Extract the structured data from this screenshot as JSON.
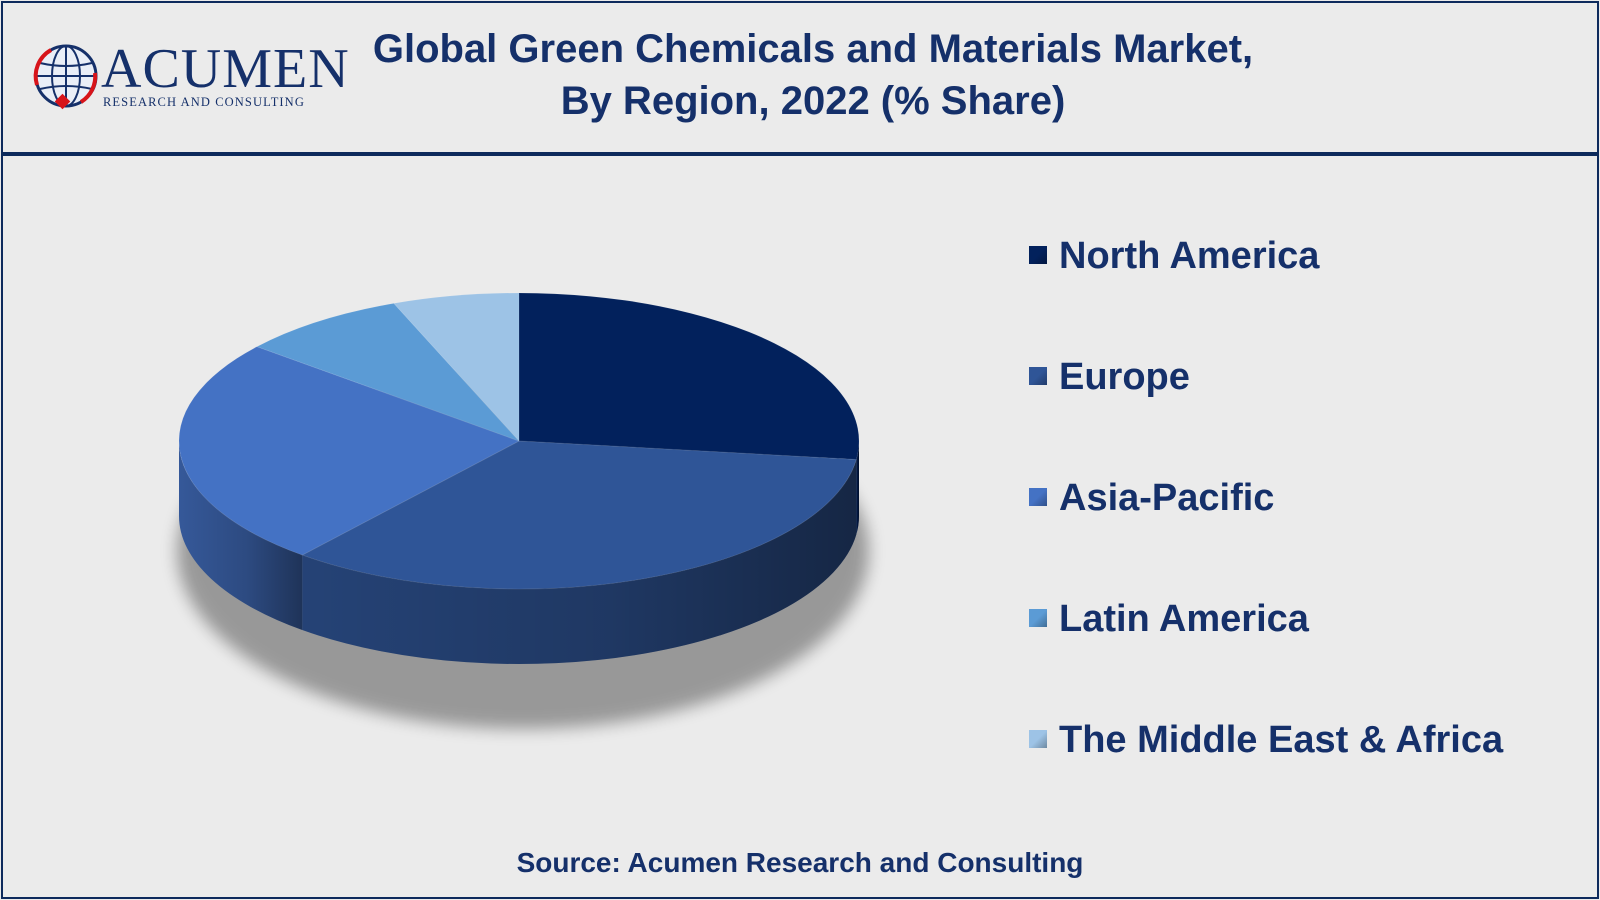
{
  "brand": {
    "logo_word": "ACUMEN",
    "logo_sub": "RESEARCH AND CONSULTING"
  },
  "title": {
    "line1": "Global Green Chemicals and Materials Market,",
    "line2": "By Region, 2022 (% Share)"
  },
  "source": "Source: Acumen Research and Consulting",
  "chart_data": {
    "type": "pie",
    "title": "Global Green Chemicals and Materials Market, By Region, 2022 (% Share)",
    "categories": [
      "North America",
      "Europe",
      "Asia-Pacific",
      "Latin America",
      "The Middle East & Africa"
    ],
    "values": [
      27,
      34,
      25,
      8,
      6
    ],
    "colors": [
      "#02215c",
      "#2f5597",
      "#4472c4",
      "#5b9bd5",
      "#9dc3e6"
    ],
    "style": "3d",
    "legend_position": "right"
  }
}
